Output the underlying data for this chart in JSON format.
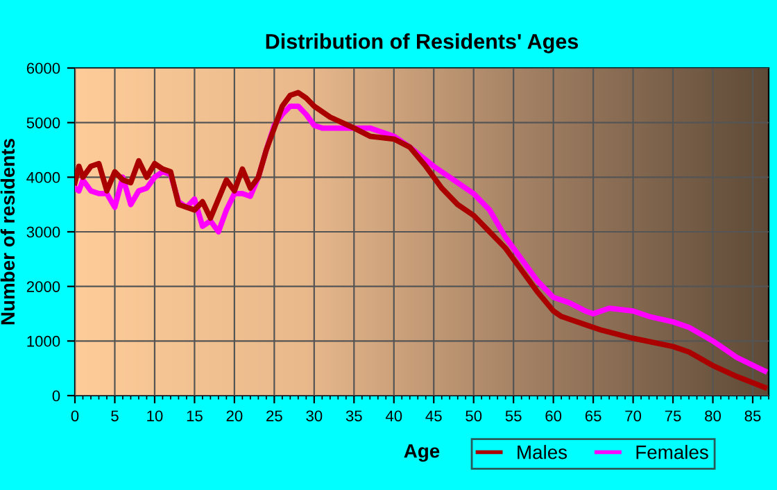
{
  "chart_data": {
    "type": "line",
    "title": "Distribution of Residents' Ages",
    "xlabel": "Age",
    "ylabel": "Number of residents",
    "series": [
      {
        "name": "Males",
        "color": "#aa0000",
        "x": [
          0,
          0.5,
          1,
          2,
          3,
          4,
          5,
          6,
          7,
          8,
          9,
          10,
          11,
          12,
          13,
          14,
          15,
          16,
          17,
          18,
          19,
          20,
          21,
          22,
          23,
          24,
          25,
          26,
          27,
          28,
          29,
          30,
          32,
          35,
          37,
          40,
          42,
          44,
          46,
          48,
          50,
          52,
          54,
          56,
          58,
          60,
          61,
          62,
          64,
          66,
          70,
          75,
          77,
          80,
          83,
          86.5
        ],
        "values": [
          3900,
          4200,
          4000,
          4200,
          4250,
          3750,
          4100,
          3950,
          3900,
          4300,
          4000,
          4250,
          4150,
          4100,
          3500,
          3450,
          3400,
          3550,
          3250,
          3600,
          3950,
          3750,
          4150,
          3800,
          4000,
          4500,
          4900,
          5300,
          5500,
          5550,
          5450,
          5300,
          5100,
          4900,
          4750,
          4700,
          4550,
          4200,
          3800,
          3500,
          3300,
          3000,
          2700,
          2300,
          1900,
          1550,
          1450,
          1400,
          1300,
          1200,
          1050,
          900,
          800,
          550,
          350,
          150
        ]
      },
      {
        "name": "Females",
        "color": "#ff00ff",
        "x": [
          0,
          0.5,
          1,
          2,
          3,
          4,
          5,
          6,
          7,
          8,
          9,
          10,
          11,
          12,
          13,
          14,
          15,
          16,
          17,
          18,
          19,
          20,
          21,
          22,
          23,
          24,
          25,
          26,
          27,
          28,
          29,
          30,
          31,
          33,
          35,
          37,
          40,
          42,
          45,
          48,
          50,
          52,
          54,
          56,
          58,
          60,
          62,
          64,
          65,
          67,
          70,
          72,
          75,
          77,
          80,
          83,
          86.5
        ],
        "values": [
          3800,
          3750,
          3950,
          3750,
          3700,
          3700,
          3450,
          4000,
          3500,
          3750,
          3800,
          4000,
          4100,
          4050,
          3550,
          3450,
          3600,
          3100,
          3200,
          3000,
          3400,
          3700,
          3700,
          3650,
          4000,
          4500,
          4950,
          5150,
          5300,
          5300,
          5150,
          4950,
          4900,
          4900,
          4900,
          4900,
          4750,
          4550,
          4200,
          3900,
          3700,
          3400,
          2900,
          2500,
          2100,
          1800,
          1700,
          1550,
          1500,
          1600,
          1550,
          1450,
          1350,
          1250,
          1000,
          700,
          450
        ]
      }
    ],
    "xlim": [
      0,
      87
    ],
    "xticks": [
      0,
      5,
      10,
      15,
      20,
      25,
      30,
      35,
      40,
      45,
      50,
      55,
      60,
      65,
      70,
      75,
      80,
      85
    ],
    "ylim": [
      0,
      6000
    ],
    "yticks": [
      0,
      1000,
      2000,
      3000,
      4000,
      5000,
      6000
    ],
    "grid": true,
    "legend": "bottom right",
    "line_style": "solid",
    "marker": "none"
  }
}
